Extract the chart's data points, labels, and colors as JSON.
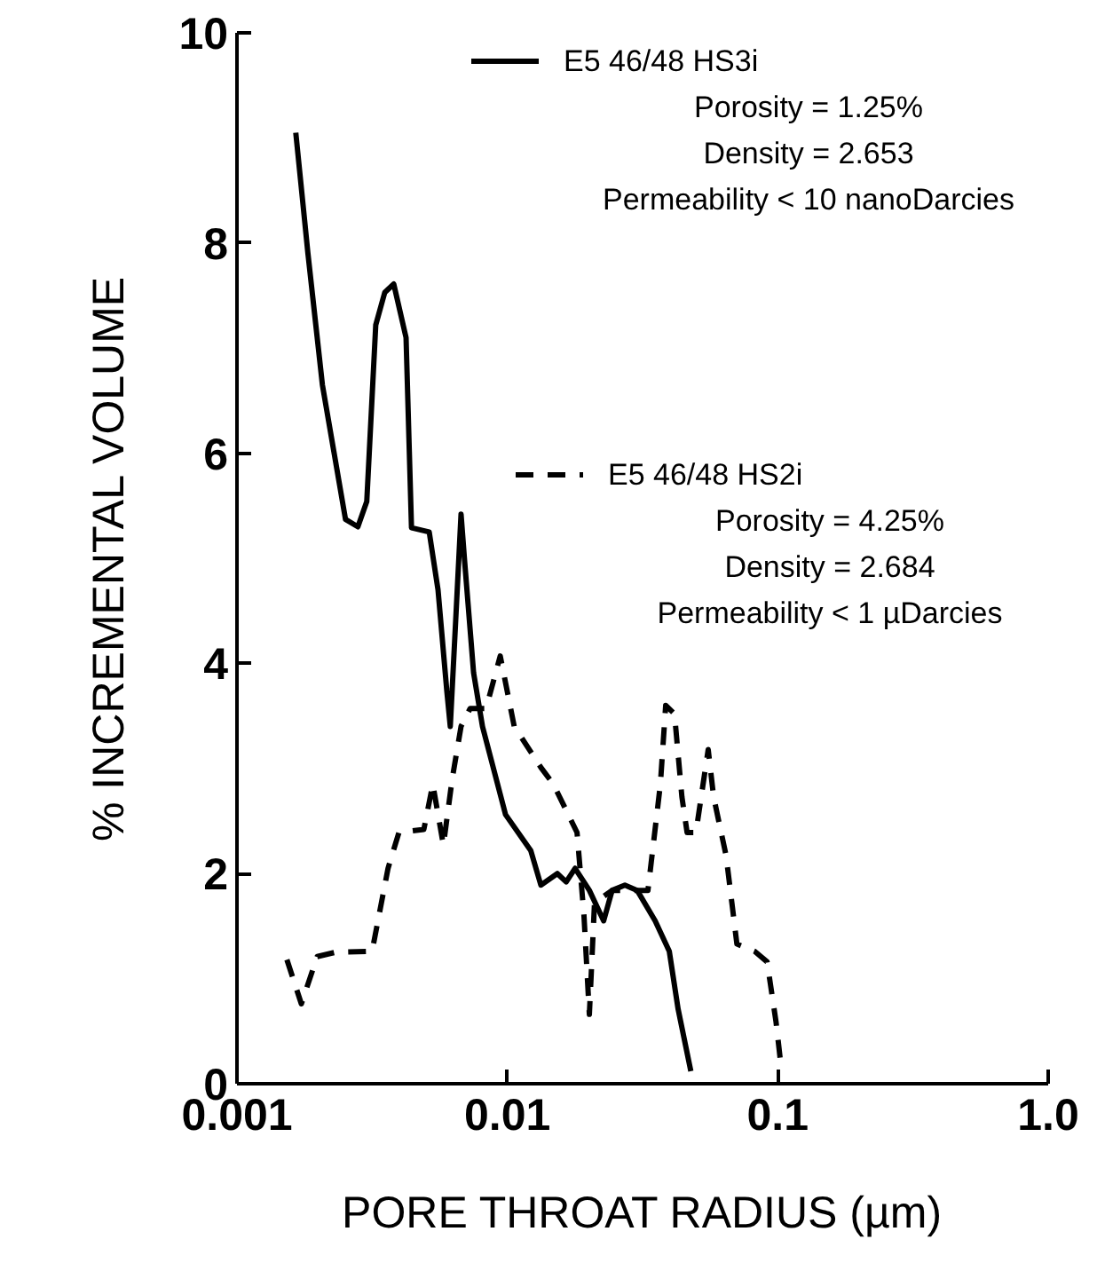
{
  "chart_data": {
    "type": "line",
    "xlabel": "PORE THROAT RADIUS (µm)",
    "ylabel": "% INCREMENTAL VOLUME",
    "log": "x",
    "xlim": [
      0.001,
      1.0
    ],
    "ylim": [
      0,
      10
    ],
    "xticks": [
      0.001,
      0.01,
      0.1,
      {
        "value": 1.0,
        "label": "1.0"
      }
    ],
    "yticks": [
      0,
      2,
      4,
      6,
      8,
      10
    ],
    "grid": false,
    "legend": "top right",
    "marker": "none",
    "annotations": [
      "Porosity = 1.25%",
      "Density = 2.653",
      "Permeability < 10 nanoDarcies",
      "Porosity = 4.25%",
      "Density = 2.684",
      "Permeability < 1 µDarcies"
    ],
    "series": [
      {
        "name": "E5 46/48 HS3i",
        "color": "#000000",
        "line_style": "solid",
        "x": [
          0.00165,
          0.00183,
          0.00207,
          0.00252,
          0.0028,
          0.00302,
          0.00326,
          0.00352,
          0.0038,
          0.00422,
          0.00442,
          0.00514,
          0.00554,
          0.00597,
          0.00615,
          0.00644,
          0.00674,
          0.00695,
          0.0075,
          0.00809,
          0.00985,
          0.0122,
          0.0133,
          0.0153,
          0.0165,
          0.0178,
          0.0201,
          0.0227,
          0.0244,
          0.0272,
          0.0302,
          0.0352,
          0.0397,
          0.0428,
          0.0477
        ],
        "values": [
          9.05,
          7.9,
          6.65,
          5.37,
          5.3,
          5.54,
          7.22,
          7.53,
          7.61,
          7.1,
          5.29,
          5.25,
          4.7,
          3.74,
          3.4,
          4.41,
          5.42,
          4.97,
          3.91,
          3.4,
          2.56,
          2.22,
          1.89,
          2.0,
          1.92,
          2.05,
          1.84,
          1.55,
          1.84,
          1.89,
          1.84,
          1.55,
          1.26,
          0.71,
          0.12
        ]
      },
      {
        "name": "E5 46/48 HS2i",
        "color": "#000000",
        "line_style": "dashed",
        "x": [
          0.00153,
          0.00173,
          0.00198,
          0.0023,
          0.00316,
          0.00362,
          0.00397,
          0.00491,
          0.0053,
          0.0058,
          0.00625,
          0.00674,
          0.00728,
          0.00834,
          0.00941,
          0.0106,
          0.0133,
          0.0148,
          0.0181,
          0.0192,
          0.0201,
          0.021,
          0.0244,
          0.0331,
          0.0368,
          0.0385,
          0.0415,
          0.0442,
          0.0462,
          0.0498,
          0.0553,
          0.0579,
          0.0644,
          0.0706,
          0.0821,
          0.0913,
          0.0985,
          0.103
        ],
        "values": [
          1.18,
          0.76,
          1.21,
          1.25,
          1.26,
          2.05,
          2.39,
          2.42,
          2.85,
          2.27,
          2.9,
          3.4,
          3.57,
          3.57,
          4.07,
          3.4,
          3.01,
          2.85,
          2.39,
          1.6,
          0.66,
          1.72,
          1.84,
          1.84,
          2.85,
          3.6,
          3.52,
          2.73,
          2.39,
          2.39,
          3.18,
          2.73,
          2.17,
          1.33,
          1.26,
          1.16,
          0.59,
          0.15
        ]
      }
    ]
  }
}
